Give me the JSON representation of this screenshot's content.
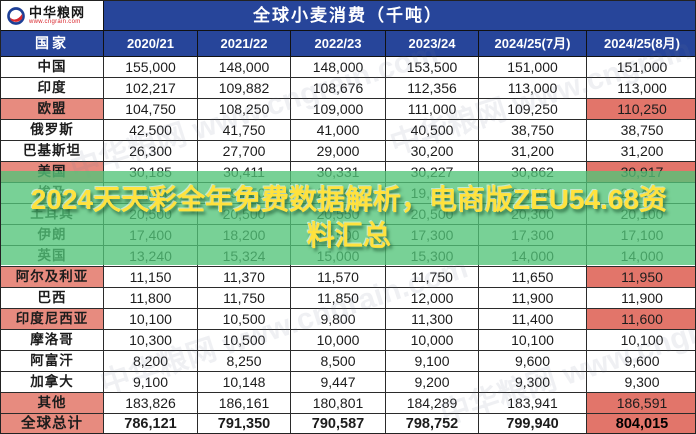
{
  "header": {
    "brand_name": "中华粮网",
    "brand_url": "www.cngrain.com"
  },
  "chart_data": {
    "type": "table",
    "title": "全球小麦消费（千吨）",
    "columns": [
      "国家",
      "2020/21",
      "2021/22",
      "2022/23",
      "2023/24",
      "2024/25(7月)",
      "2024/25(8月)"
    ],
    "rows": [
      {
        "country": "中国",
        "values": [
          "155,000",
          "148,000",
          "148,000",
          "153,500",
          "151,000",
          "151,000"
        ],
        "highlight": false,
        "total": false
      },
      {
        "country": "印度",
        "values": [
          "102,217",
          "109,882",
          "108,676",
          "112,356",
          "113,000",
          "113,000"
        ],
        "highlight": false,
        "total": false
      },
      {
        "country": "欧盟",
        "values": [
          "104,750",
          "108,250",
          "109,000",
          "111,000",
          "109,250",
          "110,250"
        ],
        "highlight": true,
        "total": false
      },
      {
        "country": "俄罗斯",
        "values": [
          "42,500",
          "41,750",
          "41,000",
          "40,500",
          "38,750",
          "38,750"
        ],
        "highlight": false,
        "total": false
      },
      {
        "country": "巴基斯坦",
        "values": [
          "26,300",
          "27,700",
          "29,000",
          "30,200",
          "31,200",
          "31,200"
        ],
        "highlight": false,
        "total": false
      },
      {
        "country": "美国",
        "values": [
          "30,185",
          "30,411",
          "30,331",
          "30,227",
          "30,862",
          "30,917"
        ],
        "highlight": true,
        "total": false
      },
      {
        "country": "埃及",
        "values": [
          "19,050",
          "19,250",
          "20,000",
          "19,000",
          "20,400",
          "20,400"
        ],
        "highlight": false,
        "total": false
      },
      {
        "country": "土耳其",
        "values": [
          "20,500",
          "20,500",
          "20,550",
          "20,500",
          "20,300",
          "20,100"
        ],
        "highlight": false,
        "total": false
      },
      {
        "country": "伊朗",
        "values": [
          "17,400",
          "18,200",
          "17,500",
          "17,300",
          "17,300",
          "17,100"
        ],
        "highlight": false,
        "total": false
      },
      {
        "country": "英国",
        "values": [
          "13,240",
          "15,324",
          "15,000",
          "15,300",
          "14,000",
          "14,000"
        ],
        "highlight": false,
        "total": false
      },
      {
        "country": "阿尔及利亚",
        "values": [
          "11,150",
          "11,370",
          "11,570",
          "11,750",
          "11,650",
          "11,950"
        ],
        "highlight": true,
        "total": false
      },
      {
        "country": "巴西",
        "values": [
          "11,800",
          "11,750",
          "11,850",
          "12,000",
          "11,900",
          "11,900"
        ],
        "highlight": false,
        "total": false
      },
      {
        "country": "印度尼西亚",
        "values": [
          "10,100",
          "10,500",
          "9,800",
          "11,300",
          "11,400",
          "11,600"
        ],
        "highlight": true,
        "total": false
      },
      {
        "country": "摩洛哥",
        "values": [
          "10,300",
          "10,500",
          "10,000",
          "10,000",
          "10,100",
          "10,100"
        ],
        "highlight": false,
        "total": false
      },
      {
        "country": "阿富汗",
        "values": [
          "8,200",
          "8,250",
          "8,500",
          "9,100",
          "9,600",
          "9,600"
        ],
        "highlight": false,
        "total": false
      },
      {
        "country": "加拿大",
        "values": [
          "9,100",
          "10,148",
          "9,447",
          "9,200",
          "9,300",
          "9,300"
        ],
        "highlight": false,
        "total": false
      },
      {
        "country": "其他",
        "values": [
          "183,826",
          "186,161",
          "180,801",
          "184,289",
          "183,941",
          "186,591"
        ],
        "highlight": true,
        "total": false
      },
      {
        "country": "全球总计",
        "values": [
          "786,121",
          "791,350",
          "790,587",
          "798,752",
          "799,940",
          "804,015"
        ],
        "highlight": true,
        "total": true
      }
    ]
  },
  "overlay": {
    "lines": [
      "2024天天彩全年免费数据解析，电商版ZEU54.68资",
      "料汇总"
    ]
  },
  "watermark_text": "中华粮网 www.cngrain.com",
  "colors": {
    "header_blue": "#27459a",
    "highlight_pink": "#e78b7f",
    "highlight_red": "#e2756a",
    "overlay_green": "rgba(82,196,120,0.78)",
    "overlay_yellow": "#ffe23e",
    "brand_red": "#d8262c"
  }
}
